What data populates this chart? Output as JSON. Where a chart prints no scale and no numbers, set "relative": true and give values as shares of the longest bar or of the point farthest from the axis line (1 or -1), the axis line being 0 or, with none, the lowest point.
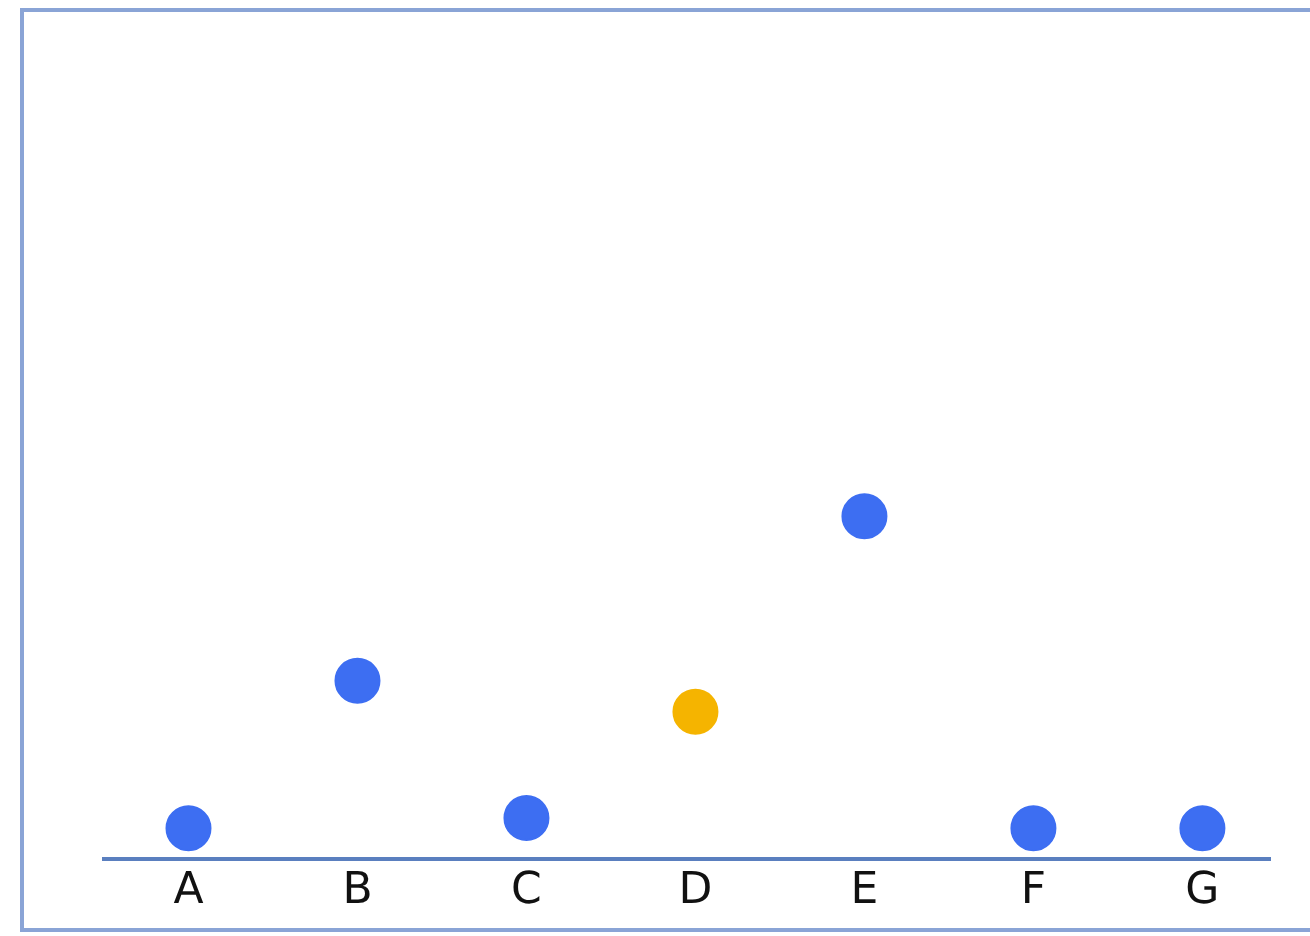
{
  "chart_data": {
    "type": "scatter",
    "relative": true,
    "categories": [
      "A",
      "B",
      "C",
      "D",
      "E",
      "F",
      "G"
    ],
    "values": [
      0.09,
      0.52,
      0.12,
      0.43,
      1,
      0.09,
      0.09
    ],
    "colors": [
      "#3d6ef2",
      "#3d6ef2",
      "#3d6ef2",
      "#f5b400",
      "#3d6ef2",
      "#3d6ef2",
      "#3d6ef2"
    ],
    "marker": "circle",
    "grid": false,
    "legend": false
  }
}
